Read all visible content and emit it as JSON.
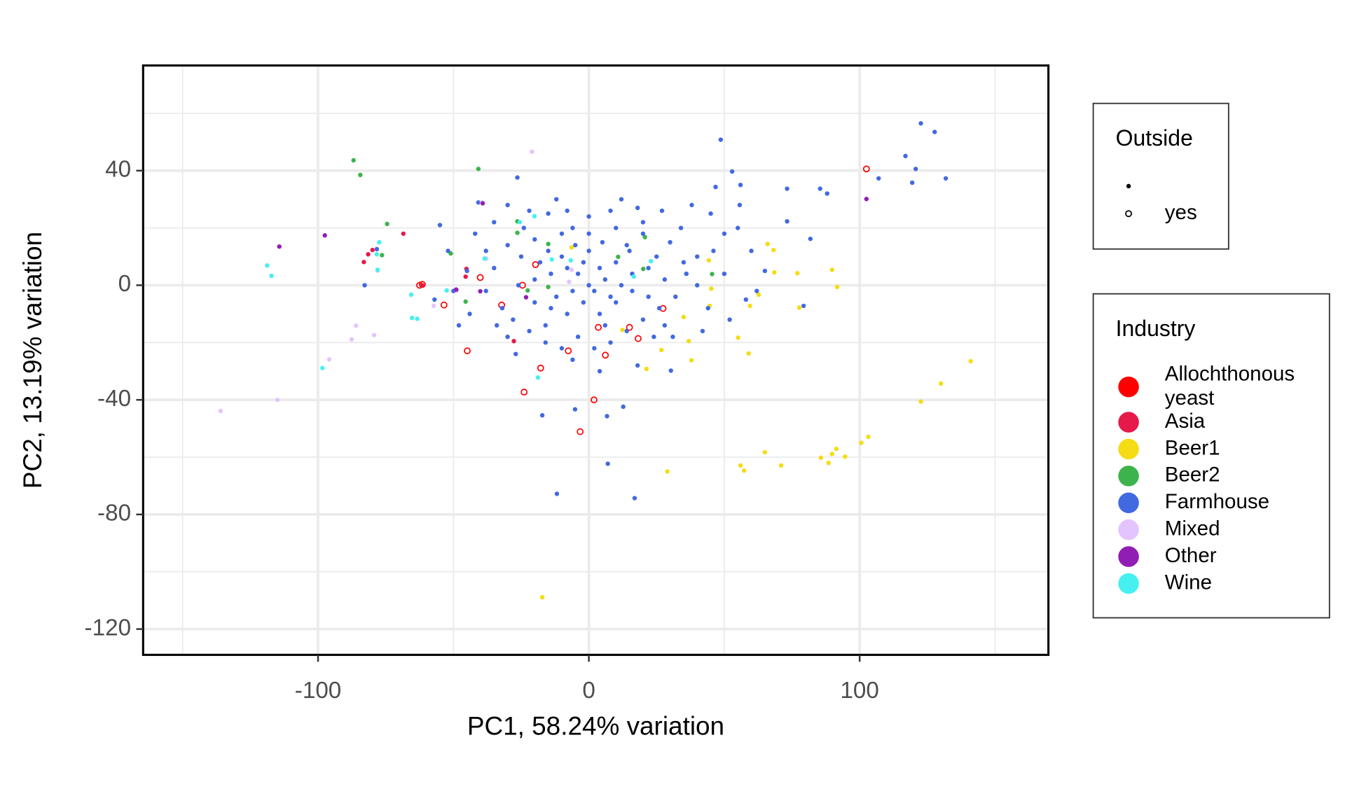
{
  "chart_data": {
    "type": "scatter",
    "x_label": "PC1, 58.24% variation",
    "y_label": "PC2, 13.19% variation",
    "xlim": [
      -164.6,
      169.7
    ],
    "ylim": [
      -129,
      76.7
    ],
    "xticks": [
      -100,
      0,
      100
    ],
    "yticks": [
      40,
      0,
      -40,
      -80,
      -120
    ],
    "x_minor_grid": [
      -150,
      -50,
      50,
      150
    ],
    "y_minor_grid": [
      60,
      20,
      -20,
      -60,
      -100
    ],
    "grid": true,
    "outside_legend": {
      "title": "Outside",
      "labels": [
        null,
        "yes"
      ]
    },
    "legend_title": "Industry",
    "series": [
      {
        "name": "Allochthonous yeast",
        "color": "#ff0000",
        "outside": "yes",
        "x": [
          102.5,
          -61.5,
          -62.5,
          -53.5,
          -32.2,
          -40.1,
          -24.5,
          -19.7,
          -44.9,
          -17.8,
          -23.9,
          1.9,
          -3.2,
          -7.6,
          6.1,
          3.5,
          15,
          18.2,
          27.4
        ],
        "values": [
          40.6,
          0.3,
          0,
          -6.9,
          -6.9,
          2.7,
          0,
          7.2,
          -22.9,
          -28.9,
          -37.3,
          -40,
          -51.1,
          -22.9,
          -24.4,
          -14.7,
          -14.7,
          -18.6,
          -8.1
        ]
      },
      {
        "name": "Asia",
        "color": "#e6194b",
        "x": [
          -68.5,
          -79.9,
          -81.5,
          -83.1,
          -45.2,
          -45.5,
          -27.7,
          -61.5
        ],
        "values": [
          18,
          12.3,
          10.8,
          8.1,
          5.7,
          3,
          -19.5,
          0
        ]
      },
      {
        "name": "Beer1",
        "color": "#f5dc14",
        "x": [
          141,
          130,
          122.6,
          103.2,
          100.6,
          91.4,
          89.8,
          88.5,
          85.7,
          94.6,
          65,
          56,
          57.3,
          71,
          29,
          -17.2,
          89.8,
          91.7,
          77,
          77.7,
          68.5,
          68.2,
          66,
          62.7,
          59.5,
          59,
          55.1,
          44.6,
          37.9,
          36.9,
          35,
          26.8,
          21.3,
          12.4,
          45.2,
          44.3,
          -6.4
        ],
        "values": [
          -26.5,
          -34.3,
          -40.6,
          -52.9,
          -55,
          -57.1,
          -58.9,
          -62,
          -60.2,
          -59.8,
          -58.3,
          -62.9,
          -64.7,
          -62.9,
          -65,
          -108.9,
          5.4,
          -0.6,
          4.2,
          -7.8,
          4.5,
          12.3,
          14.4,
          -3.3,
          -7.2,
          -23.8,
          -18.3,
          -7.2,
          -26.2,
          -19.5,
          -11.1,
          -22.6,
          -29.2,
          -15.6,
          -1.2,
          8.7,
          13.2
        ]
      },
      {
        "name": "Beer2",
        "color": "#3cb44b",
        "x": [
          -86.9,
          -84.4,
          -40.8,
          -74.5,
          -76.4,
          -51,
          -45.5,
          -26.4,
          -15,
          -22.6,
          -15,
          10.8,
          20.7,
          20.1,
          45.5,
          -26.4
        ],
        "values": [
          43.6,
          38.5,
          40.6,
          21.4,
          10.5,
          11.1,
          -5.7,
          18.3,
          14.4,
          -1.8,
          -0.6,
          9.9,
          16.8,
          5.7,
          3.9,
          22.3
        ]
      },
      {
        "name": "Farmhouse",
        "color": "#4169e1",
        "x": [
          48.7,
          122.6,
          127.7,
          116.9,
          120.7,
          107,
          119.4,
          131.8,
          52.9,
          73.2,
          85.4,
          88,
          81.8,
          79.3,
          73.2,
          46.8,
          55.7,
          56,
          7,
          -11.8,
          16.9,
          -17.2,
          -5.1,
          6.7,
          12.7,
          -26.4,
          -40.8,
          -82.8,
          -55,
          -78.3,
          30.3,
          31,
          -27,
          -34,
          -45,
          -50,
          -52,
          -57,
          -42,
          -35,
          -30,
          -22,
          -15,
          -8,
          0,
          8,
          18,
          27,
          38,
          45,
          50,
          55,
          60,
          65,
          58,
          52,
          44,
          40,
          35,
          30,
          25,
          20,
          15,
          10,
          5,
          0,
          -5,
          -10,
          -15,
          -20,
          -25,
          -30,
          -35,
          -38,
          -32,
          -28,
          -22,
          -16,
          -10,
          -4,
          2,
          8,
          14,
          20,
          26,
          32,
          36,
          28,
          22,
          16,
          10,
          4,
          -2,
          -8,
          -14,
          -20,
          -26,
          -20,
          -14,
          -8,
          -2,
          4,
          10,
          16,
          22,
          12,
          6,
          0,
          -6,
          -12,
          -4,
          2,
          8,
          -10,
          -18,
          14,
          -24,
          24,
          -30,
          46,
          42,
          -44,
          -48,
          18,
          -6,
          4,
          50,
          62,
          34,
          -12,
          12,
          6,
          -16,
          0,
          -6,
          20,
          40,
          -38,
          28
        ],
        "values": [
          50.8,
          56.5,
          53.5,
          45.1,
          40.6,
          37.3,
          35.8,
          37.3,
          39.7,
          33.7,
          33.7,
          32,
          16.2,
          -7.2,
          22.3,
          34.3,
          28,
          35,
          -62.3,
          -72.8,
          -74.3,
          -45.4,
          -43.3,
          -45.7,
          -42.4,
          37.6,
          28.9,
          0,
          21,
          12.6,
          -29.8,
          -18,
          -24,
          -14,
          5,
          -2,
          12,
          -5,
          18,
          22,
          28,
          26,
          25,
          26,
          24,
          26,
          27,
          26,
          28,
          25,
          18,
          20,
          12,
          5,
          -5,
          -12,
          -8,
          0,
          8,
          15,
          10,
          18,
          12,
          20,
          15,
          18,
          14,
          18,
          12,
          16,
          10,
          14,
          6,
          -2,
          -8,
          -12,
          -16,
          -20,
          -22,
          -18,
          -22,
          -20,
          -16,
          -12,
          -8,
          -4,
          4,
          2,
          6,
          4,
          8,
          6,
          8,
          6,
          4,
          2,
          0,
          -6,
          -8,
          -10,
          -6,
          -10,
          -6,
          -2,
          -4,
          0,
          2,
          0,
          -2,
          -4,
          4,
          -2,
          -4,
          10,
          8,
          14,
          20,
          -18,
          -18,
          12,
          -16,
          -10,
          -14,
          -28,
          -26,
          -30,
          4,
          -2,
          20,
          30,
          30,
          -14,
          -14,
          12,
          20,
          22,
          10,
          12,
          -14
        ]
      },
      {
        "name": "Mixed",
        "color": "#e3c4ff",
        "x": [
          -21,
          -136,
          -115,
          -95.9,
          -87.6,
          -86,
          -79.3,
          -78,
          -57.3,
          -48.7,
          -37.9,
          -7.3,
          -6.4,
          -39.5
        ],
        "values": [
          46.6,
          -43.9,
          -40,
          -25.9,
          -18.9,
          -14.1,
          -17.4,
          5.1,
          -7.2,
          -1.8,
          9.3,
          1.2,
          5.4,
          28.9
        ]
      },
      {
        "name": "Other",
        "color": "#911eb4",
        "x": [
          -114.3,
          -97.5,
          102.5,
          -39.2,
          -23.2,
          -49,
          -40.1
        ],
        "values": [
          13.5,
          17.4,
          30.1,
          28.6,
          -4.2,
          -1.5,
          -2.1
        ]
      },
      {
        "name": "Wine",
        "color": "#46f0f0",
        "x": [
          -118.8,
          -117.2,
          -98.4,
          -77.4,
          -78.3,
          -78,
          -65.6,
          -65.3,
          -63.4,
          -18.8,
          -25.5,
          -20.1,
          -13.7,
          -6.7,
          16.6,
          22.9,
          -38.5,
          -52.5
        ],
        "values": [
          6.9,
          3.3,
          -28.9,
          15,
          10.8,
          5.4,
          -3.3,
          -11.4,
          -11.7,
          -32.2,
          22,
          24.1,
          9,
          8.7,
          3,
          8.4,
          9.3,
          -1.8
        ]
      }
    ]
  }
}
